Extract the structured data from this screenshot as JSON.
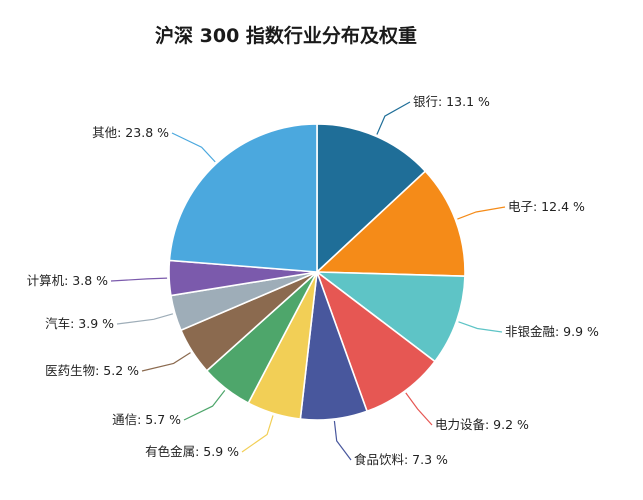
{
  "chart_data": {
    "type": "pie",
    "title": "沪深 300 指数行业分布及权重",
    "unit": "%",
    "slices": [
      {
        "label": "银行",
        "value": 13.1,
        "text": "银行: 13.1 %",
        "color": "#1f6e98"
      },
      {
        "label": "电子",
        "value": 12.4,
        "text": "电子: 12.4 %",
        "color": "#f58b18"
      },
      {
        "label": "非银金融",
        "value": 9.9,
        "text": "非银金融: 9.9 %",
        "color": "#5ec4c6"
      },
      {
        "label": "电力设备",
        "value": 9.2,
        "text": "电力设备: 9.2 %",
        "color": "#e65753"
      },
      {
        "label": "食品饮料",
        "value": 7.3,
        "text": "食品饮料: 7.3 %",
        "color": "#48579d"
      },
      {
        "label": "有色金属",
        "value": 5.9,
        "text": "有色金属: 5.9 %",
        "color": "#f2cf56"
      },
      {
        "label": "通信",
        "value": 5.7,
        "text": "通信: 5.7 %",
        "color": "#4ea66b"
      },
      {
        "label": "医药生物",
        "value": 5.2,
        "text": "医药生物: 5.2 %",
        "color": "#8b6a4f"
      },
      {
        "label": "汽车",
        "value": 3.9,
        "text": "汽车: 3.9 %",
        "color": "#9eadb8"
      },
      {
        "label": "计算机",
        "value": 3.8,
        "text": "计算机: 3.8 %",
        "color": "#7b5aac"
      },
      {
        "label": "其他",
        "value": 23.8,
        "text": "其他: 23.8 %",
        "color": "#4ba8de"
      }
    ]
  }
}
